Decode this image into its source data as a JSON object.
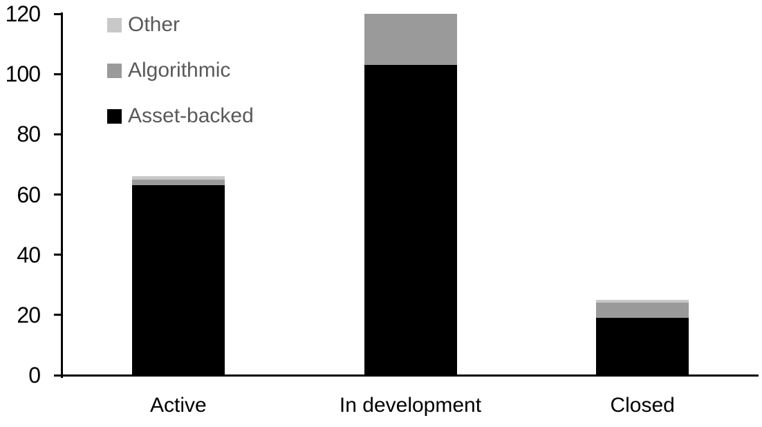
{
  "chart_data": {
    "type": "bar",
    "stacked": true,
    "title": "",
    "xlabel": "",
    "ylabel": "",
    "categories": [
      "Active",
      "In development",
      "Closed"
    ],
    "series": [
      {
        "name": "Asset-backed",
        "color": "#000000",
        "values": [
          63,
          103,
          19
        ]
      },
      {
        "name": "Algorithmic",
        "color": "#9a9a9a",
        "values": [
          2,
          17,
          5
        ]
      },
      {
        "name": "Other",
        "color": "#c8c8c8",
        "values": [
          1,
          0,
          1
        ]
      }
    ],
    "totals": [
      66,
      120,
      25
    ],
    "y_axis": {
      "min": 0,
      "max": 120,
      "tick_step": 20,
      "ticks": [
        0,
        20,
        40,
        60,
        80,
        100,
        120
      ]
    },
    "grid": false,
    "legend": {
      "position": "top-left",
      "order_top_to_bottom": [
        "Other",
        "Algorithmic",
        "Asset-backed"
      ],
      "text_color": "#595959"
    },
    "colors": {
      "axis": "#000000",
      "tick_label": "#000000",
      "category_label": "#000000",
      "background": "#ffffff"
    }
  }
}
